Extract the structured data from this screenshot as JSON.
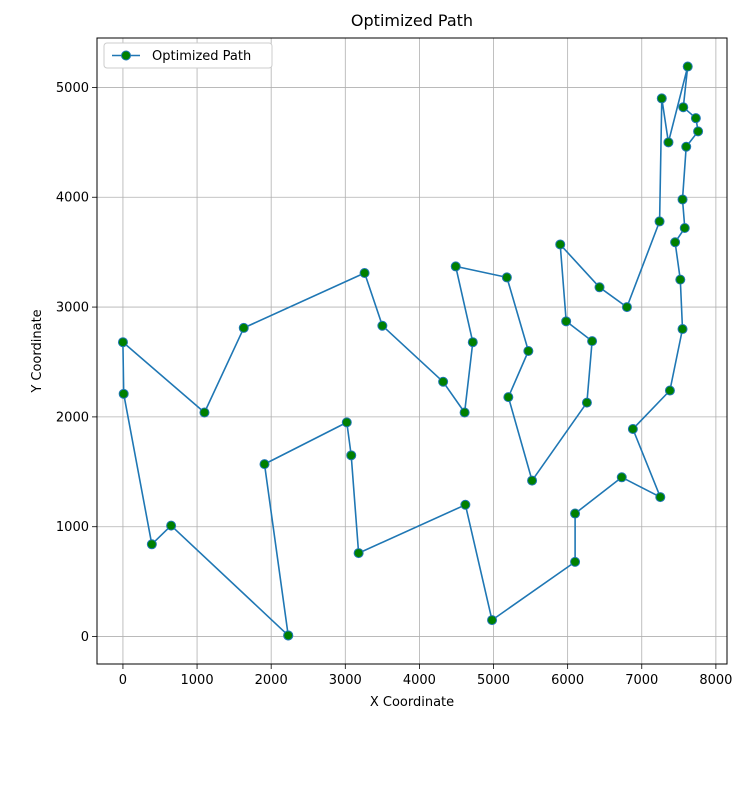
{
  "chart_data": {
    "type": "line",
    "title": "Optimized Path",
    "xlabel": "X Coordinate",
    "ylabel": "Y Coordinate",
    "xlim": [
      -350,
      8150
    ],
    "ylim": [
      -250,
      5450
    ],
    "xticks": [
      0,
      1000,
      2000,
      3000,
      4000,
      5000,
      6000,
      7000,
      8000
    ],
    "yticks": [
      0,
      1000,
      2000,
      3000,
      4000,
      5000
    ],
    "grid": true,
    "legend_position": "top-left",
    "series": [
      {
        "name": "Optimized Path",
        "line_color": "#1f77b4",
        "marker_face_color": "#008000",
        "points": [
          [
            2230,
            10
          ],
          [
            650,
            1010
          ],
          [
            390,
            840
          ],
          [
            10,
            2210
          ],
          [
            0,
            2680
          ],
          [
            1100,
            2040
          ],
          [
            1630,
            2810
          ],
          [
            3260,
            3310
          ],
          [
            3500,
            2830
          ],
          [
            4320,
            2320
          ],
          [
            4610,
            2040
          ],
          [
            4720,
            2680
          ],
          [
            4490,
            3370
          ],
          [
            5180,
            3270
          ],
          [
            5470,
            2600
          ],
          [
            5200,
            2180
          ],
          [
            5520,
            1420
          ],
          [
            6260,
            2130
          ],
          [
            6330,
            2690
          ],
          [
            5980,
            2870
          ],
          [
            5900,
            3570
          ],
          [
            6430,
            3180
          ],
          [
            6800,
            3000
          ],
          [
            7240,
            3780
          ],
          [
            7270,
            4900
          ],
          [
            7360,
            4500
          ],
          [
            7620,
            5190
          ],
          [
            7560,
            4820
          ],
          [
            7730,
            4720
          ],
          [
            7760,
            4600
          ],
          [
            7600,
            4460
          ],
          [
            7550,
            3980
          ],
          [
            7580,
            3720
          ],
          [
            7450,
            3590
          ],
          [
            7520,
            3250
          ],
          [
            7550,
            2800
          ],
          [
            7380,
            2240
          ],
          [
            6880,
            1890
          ],
          [
            7250,
            1270
          ],
          [
            6730,
            1450
          ],
          [
            6100,
            1120
          ],
          [
            6100,
            680
          ],
          [
            4980,
            150
          ],
          [
            4620,
            1200
          ],
          [
            3180,
            760
          ],
          [
            3080,
            1650
          ],
          [
            3020,
            1950
          ],
          [
            1910,
            1570
          ],
          [
            2230,
            10
          ]
        ]
      }
    ]
  }
}
